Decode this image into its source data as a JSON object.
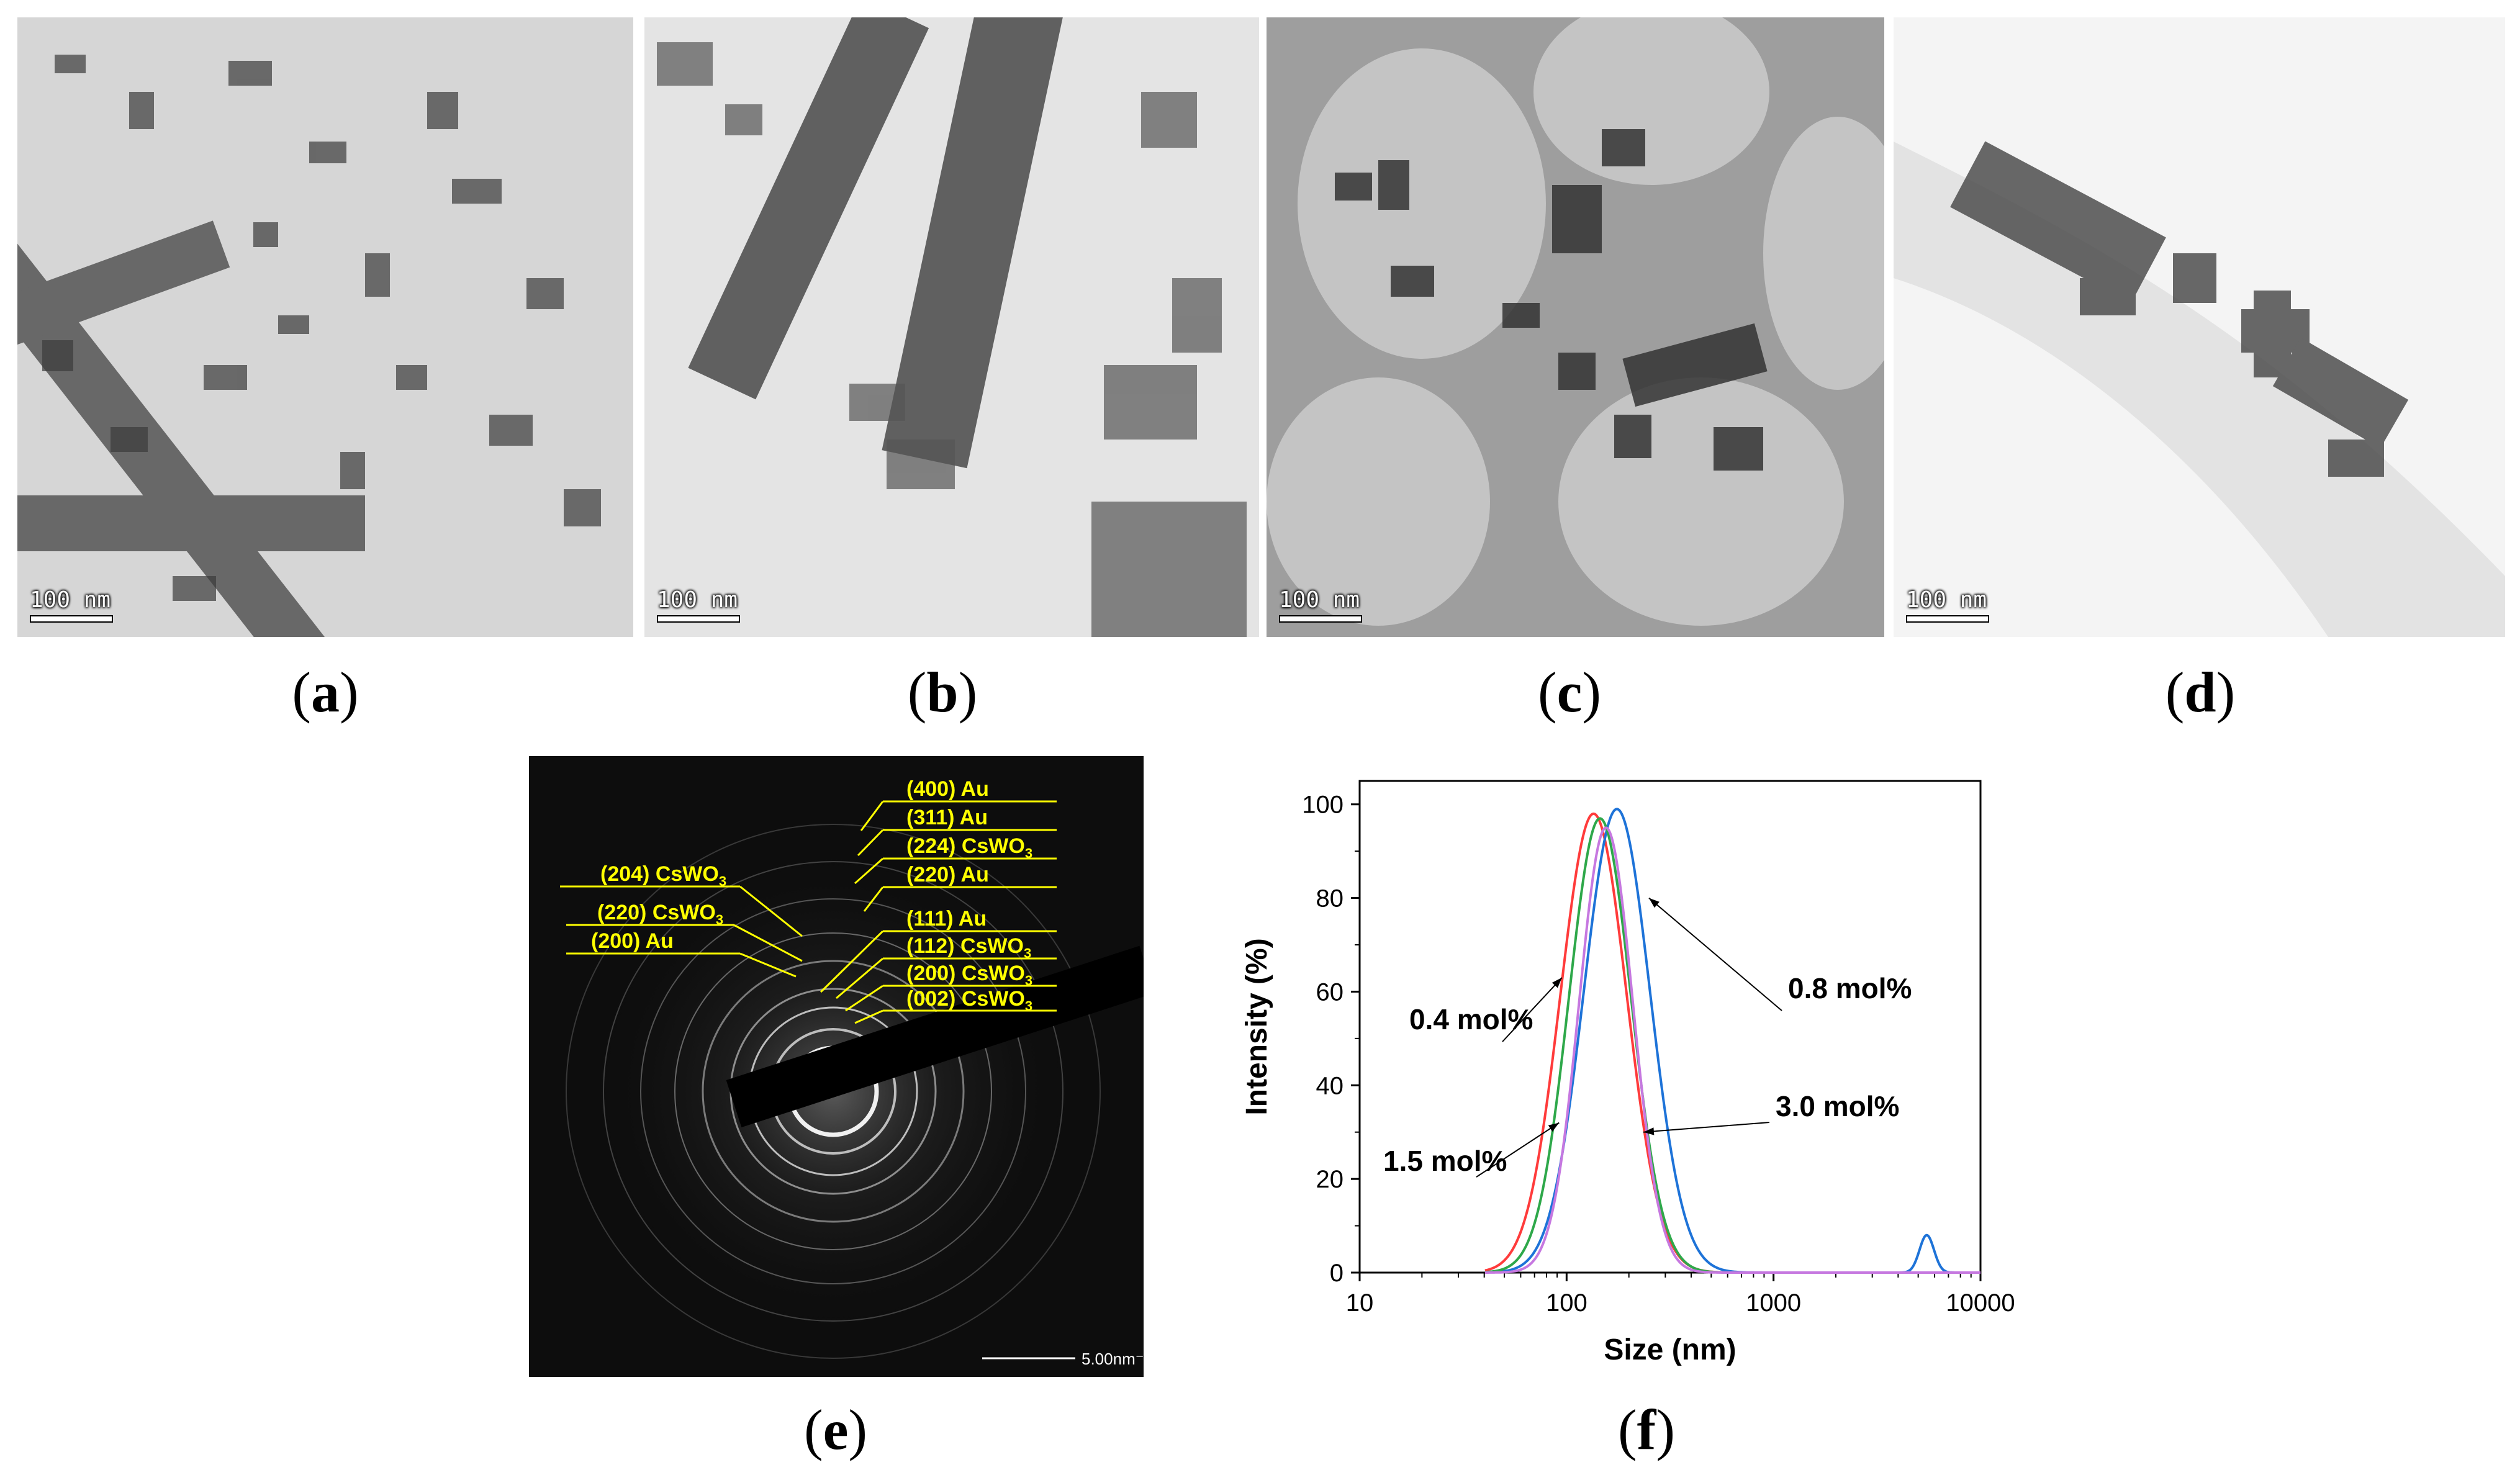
{
  "panels": {
    "a": {
      "caption": "a",
      "scale": "100 nm"
    },
    "b": {
      "caption": "b",
      "scale": "100 nm"
    },
    "c": {
      "caption": "c",
      "scale": "100 nm"
    },
    "d": {
      "caption": "d",
      "scale": "100 nm"
    },
    "e": {
      "caption": "e",
      "scale": "5.00nm⁻¹"
    },
    "f": {
      "caption": "f"
    }
  },
  "saed_labels": [
    "(400) Au",
    "(311) Au",
    "(224) CsWO",
    "(220) Au",
    "(111) Au",
    "(112) CsWO",
    "(200) CsWO",
    "(002) CsWO",
    "(204) CsWO",
    "(220) CsWO",
    "(200) Au"
  ],
  "saed_subscripts": [
    "3"
  ],
  "chart_data": {
    "type": "line",
    "title": "",
    "xlabel": "Size (nm)",
    "ylabel": "Intensity (%)",
    "xscale": "log",
    "xlim": [
      10,
      10000
    ],
    "ylim": [
      0,
      105
    ],
    "xticks": [
      "10",
      "100",
      "1000",
      "10000"
    ],
    "yticks": [
      "0",
      "20",
      "40",
      "60",
      "80",
      "100"
    ],
    "grid": false,
    "series": [
      {
        "name": "0.4 mol%",
        "color": "#ff3b3b",
        "peak_x": 135,
        "peak_y": 98,
        "width": 0.16
      },
      {
        "name": "0.8 mol%",
        "color": "#1e73d8",
        "peak_x": 175,
        "peak_y": 99,
        "width": 0.16,
        "second_peak": {
          "x": 5500,
          "y": 8,
          "width": 0.035
        }
      },
      {
        "name": "1.5 mol%",
        "color": "#2ea84a",
        "peak_x": 145,
        "peak_y": 97,
        "width": 0.15
      },
      {
        "name": "3.0 mol%",
        "color": "#c678e0",
        "peak_x": 155,
        "peak_y": 95,
        "width": 0.13
      }
    ],
    "annotations": [
      "0.4 mol%",
      "0.8 mol%",
      "1.5 mol%",
      "3.0 mol%"
    ]
  }
}
